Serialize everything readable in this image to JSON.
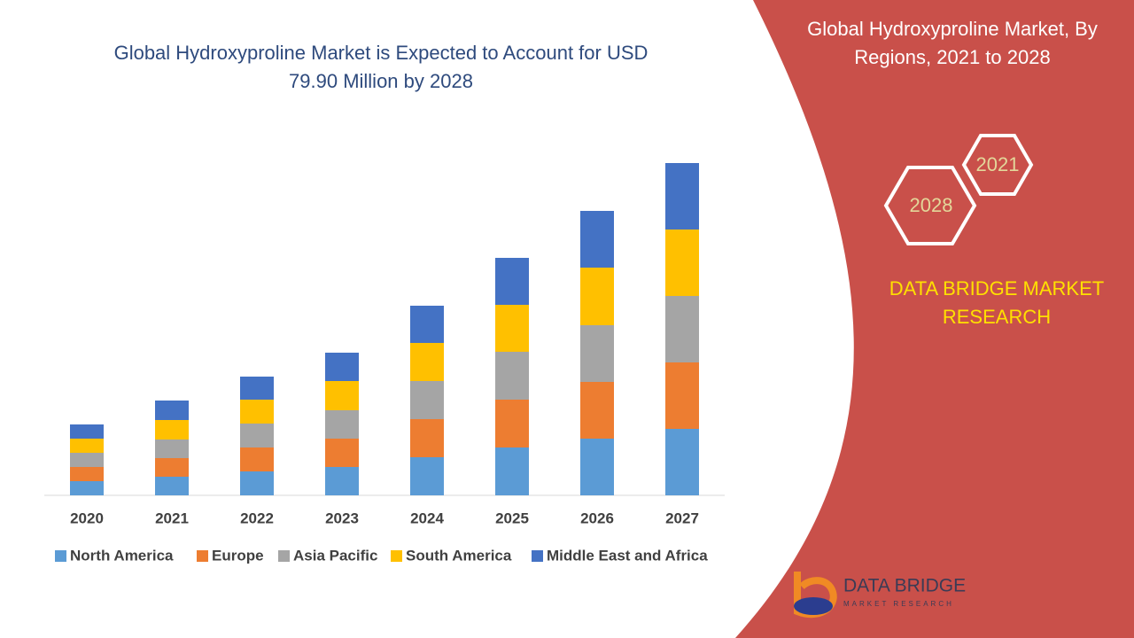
{
  "chart_data": {
    "type": "bar",
    "stacked": true,
    "title": "Global Hydroxyproline Market is Expected to Account for USD 79.90 Million by 2028",
    "categories": [
      "2020",
      "2021",
      "2022",
      "2023",
      "2024",
      "2025",
      "2026",
      "2027"
    ],
    "series": [
      {
        "name": "North America",
        "color": "#5b9bd5",
        "values": [
          16,
          21,
          27,
          32,
          43,
          54,
          64,
          75
        ]
      },
      {
        "name": "Europe",
        "color": "#ed7d31",
        "values": [
          16,
          21,
          27,
          32,
          43,
          54,
          64,
          75
        ]
      },
      {
        "name": "Asia Pacific",
        "color": "#a5a5a5",
        "values": [
          16,
          21,
          27,
          32,
          43,
          54,
          64,
          75
        ]
      },
      {
        "name": "South America",
        "color": "#ffc000",
        "values": [
          16,
          22,
          27,
          33,
          43,
          53,
          65,
          75
        ]
      },
      {
        "name": "Middle East and Africa",
        "color": "#4472c4",
        "values": [
          16,
          22,
          26,
          32,
          42,
          53,
          64,
          75
        ]
      }
    ],
    "legend": "bottom"
  },
  "panel": {
    "title": "Global Hydroxyproline Market, By Regions, 2021 to 2028",
    "hex_labels": [
      "2021",
      "2028"
    ],
    "brand": "DATA BRIDGE MARKET RESEARCH",
    "logo_name": "DATA BRIDGE",
    "logo_tagline": "MARKET RESEARCH"
  }
}
